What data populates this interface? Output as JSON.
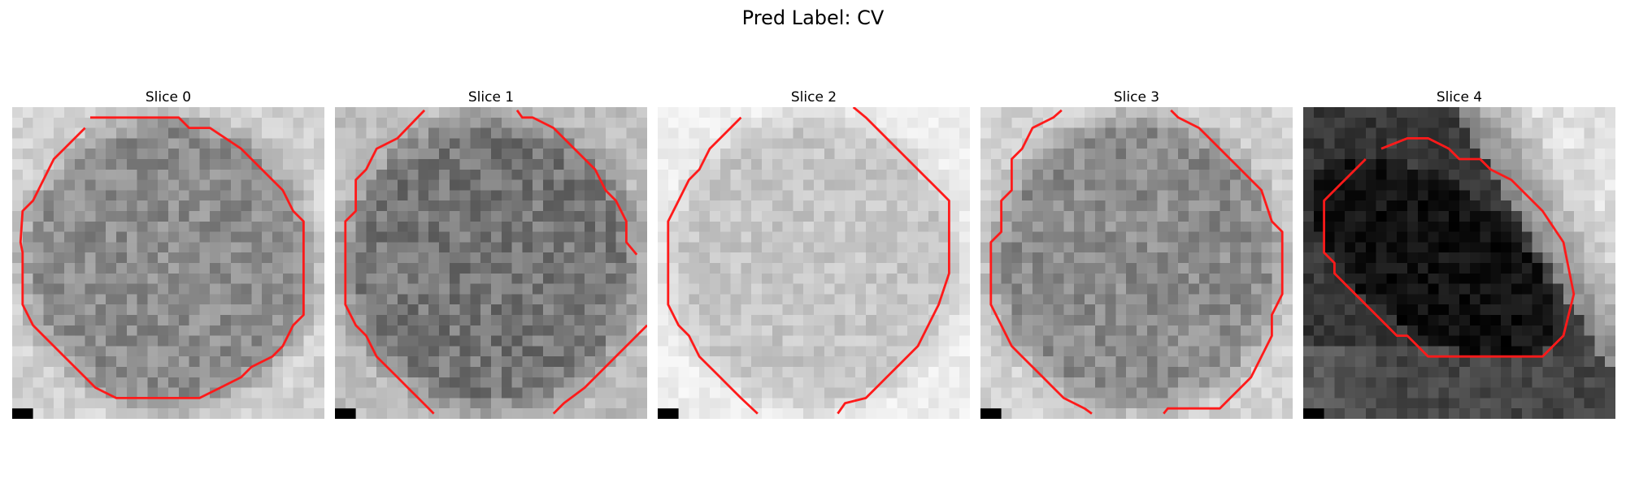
{
  "figure": {
    "title": "Pred Label: CV"
  },
  "panels": [
    {
      "title": "Slice 0",
      "mean_gray": 140,
      "contrast": 0.22
    },
    {
      "title": "Slice 1",
      "mean_gray": 118,
      "contrast": 0.24
    },
    {
      "title": "Slice 2",
      "mean_gray": 198,
      "contrast": 0.14
    },
    {
      "title": "Slice 3",
      "mean_gray": 140,
      "contrast": 0.22
    },
    {
      "title": "Slice 4",
      "mean_gray": 25,
      "contrast": 0.18
    }
  ],
  "colors": {
    "contour": "#ff1a1a",
    "background": "#ffffff"
  }
}
